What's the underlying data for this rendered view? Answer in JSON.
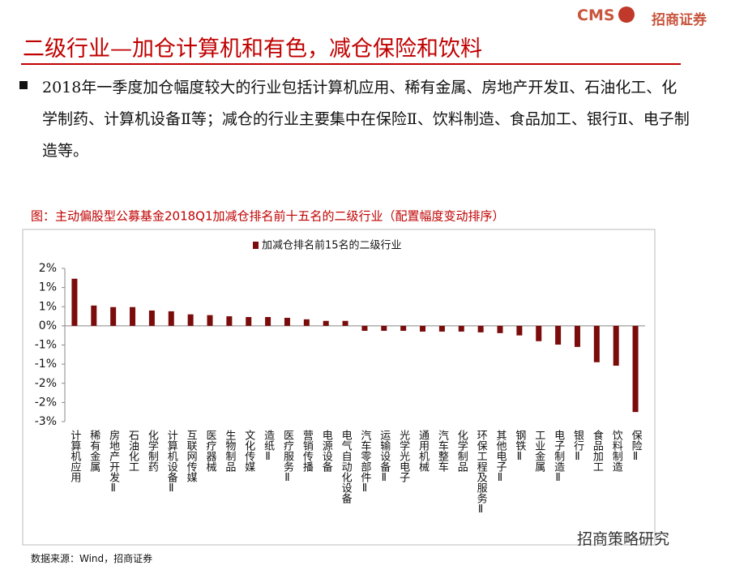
{
  "header": {
    "logo": "CMS",
    "brand": "招商证券",
    "title": "二级行业—加仓计算机和有色，减仓保险和饮料"
  },
  "bullet": "2018年一季度加仓幅度较大的行业包括计算机应用、稀有金属、房地产开发Ⅱ、石油化工、化学制药、计算机设备Ⅱ等；减仓的行业主要集中在保险Ⅱ、饮料制造、食品加工、银行Ⅱ、电子制造等。",
  "chart_data": {
    "type": "bar",
    "title": "图：主动偏股型公募基金2018Q1加减仓排名前十五名的二级行业（配置幅度变动排序）",
    "categories": [
      "计算机应用",
      "稀有金属",
      "房地产开发Ⅱ",
      "石油化工",
      "化学制药",
      "计算机设备Ⅱ",
      "互联网传媒",
      "医疗器械",
      "生物制品",
      "文化传媒",
      "造纸Ⅱ",
      "医疗服务Ⅱ",
      "营销传播",
      "电源设备",
      "电气自动化设备",
      "汽车零部件Ⅱ",
      "运输设备Ⅱ",
      "光学光电子",
      "通用机械",
      "汽车整车",
      "化学制品",
      "环保工程及服务Ⅱ",
      "其他电子Ⅱ",
      "钢铁Ⅱ",
      "工业金属",
      "电子制造Ⅱ",
      "银行Ⅱ",
      "食品加工",
      "饮料制造",
      "保险Ⅱ"
    ],
    "series": [
      {
        "name": "加减仓排名前15名的二级行业",
        "color": "#7b0c0c",
        "values": [
          1.23,
          0.53,
          0.49,
          0.49,
          0.4,
          0.38,
          0.3,
          0.28,
          0.25,
          0.23,
          0.23,
          0.21,
          0.17,
          0.13,
          0.13,
          -0.13,
          -0.13,
          -0.13,
          -0.15,
          -0.15,
          -0.15,
          -0.17,
          -0.19,
          -0.25,
          -0.4,
          -0.49,
          -0.55,
          -0.95,
          -1.04,
          -2.25
        ]
      }
    ],
    "ylim": [
      -2.5,
      1.5
    ],
    "yticks": [
      {
        "value": 1.5,
        "label": "2%"
      },
      {
        "value": 1,
        "label": "1%"
      },
      {
        "value": 0.5,
        "label": "1%"
      },
      {
        "value": 0,
        "label": "0%"
      },
      {
        "value": -0.5,
        "label": "-1%"
      },
      {
        "value": -1,
        "label": "-1%"
      },
      {
        "value": -1.5,
        "label": "-2%"
      },
      {
        "value": -2,
        "label": "-2%"
      },
      {
        "value": -2.5,
        "label": "-3%"
      }
    ],
    "grid": false,
    "legend": "top"
  },
  "source": "数据来源：Wind，招商证券",
  "watermark": "招商策略研究"
}
